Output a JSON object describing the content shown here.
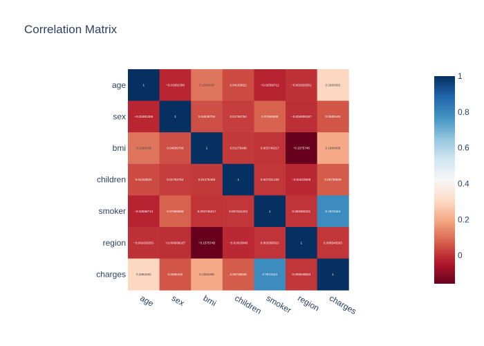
{
  "chart_data": {
    "type": "heatmap",
    "title": "Correlation Matrix",
    "x": [
      "age",
      "sex",
      "bmi",
      "children",
      "smoker",
      "region",
      "charges"
    ],
    "y": [
      "age",
      "sex",
      "bmi",
      "children",
      "smoker",
      "region",
      "charges"
    ],
    "z": [
      [
        1,
        -0.01981356,
        0.1093439,
        0.04153621,
        -0.02558712,
        -0.001626251,
        0.2983082
      ],
      [
        -0.01981356,
        1,
        0.04639706,
        0.01784754,
        0.07659585,
        -0.004936187,
        0.0580445
      ],
      [
        0.1093439,
        0.04639706,
        1,
        0.01275466,
        0.003746217,
        -0.1575745,
        0.1984008
      ],
      [
        0.04153621,
        0.01784754,
        0.01275466,
        1,
        0.007331222,
        -0.01623848,
        0.06738935
      ],
      [
        -0.02558712,
        0.07659585,
        0.003746217,
        0.007331222,
        1,
        0.002358321,
        0.7872344
      ],
      [
        -0.001626251,
        -0.004936187,
        -0.1575745,
        -0.01623848,
        0.002358321,
        1,
        0.006546563
      ],
      [
        0.2983082,
        0.0580445,
        0.1984008,
        0.06738935,
        0.7872344,
        0.006546563,
        1
      ]
    ],
    "cell_text": [
      [
        "1",
        "−0.01981356",
        "0.1093439",
        "0.04153621",
        "−0.02558712",
        "−0.001626251",
        "0.2983082"
      ],
      [
        "−0.01981356",
        "1",
        "0.04639706",
        "0.01784754",
        "0.07659585",
        "−0.004936187",
        "0.0580445"
      ],
      [
        "0.1093439",
        "0.04639706",
        "1",
        "0.01275466",
        "0.003746217",
        "−0.1575745",
        "0.1984008"
      ],
      [
        "0.04153621",
        "0.01784754",
        "0.01275466",
        "1",
        "0.007331222",
        "−0.01623848",
        "0.06738935"
      ],
      [
        "−0.02558712",
        "0.07659585",
        "0.003746217",
        "0.007331222",
        "1",
        "0.002358321",
        "0.7872344"
      ],
      [
        "−0.001626251",
        "−0.004936187",
        "−0.1575745",
        "−0.01623848",
        "0.002358321",
        "1",
        "0.006546563"
      ],
      [
        "0.2983082",
        "0.0580445",
        "0.1984008",
        "0.06738935",
        "0.7872344",
        "0.006546563",
        "1"
      ]
    ],
    "zmin": -0.1575745,
    "zmax": 1,
    "colorscale": [
      [
        0,
        "#67001f"
      ],
      [
        0.1,
        "#b2182b"
      ],
      [
        0.2,
        "#d6604d"
      ],
      [
        0.3,
        "#f4a582"
      ],
      [
        0.4,
        "#fddbc7"
      ],
      [
        0.5,
        "#f7f7f7"
      ],
      [
        0.6,
        "#d1e5f0"
      ],
      [
        0.7,
        "#92c5de"
      ],
      [
        0.8,
        "#4393c3"
      ],
      [
        0.9,
        "#2166ac"
      ],
      [
        1,
        "#053061"
      ]
    ],
    "colorbar_ticks": [
      0,
      0.2,
      0.4,
      0.6,
      0.8,
      1
    ],
    "colorbar_tick_labels": [
      "0",
      "0.2",
      "0.4",
      "0.6",
      "0.8",
      "1"
    ]
  }
}
